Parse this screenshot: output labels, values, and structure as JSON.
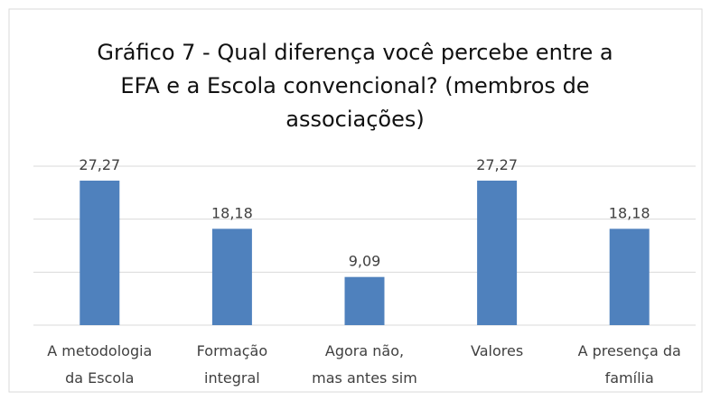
{
  "chart_data": {
    "type": "bar",
    "title": "Gráfico 7 - Qual diferença você percebe entre a EFA e a Escola convencional? (membros de associações)",
    "categories": [
      "A metodologia da Escola",
      "Formação integral",
      "Agora não, mas antes sim",
      "Valores",
      "A presença da família"
    ],
    "values": [
      27.27,
      18.18,
      9.09,
      27.27,
      18.18
    ],
    "value_labels": [
      "27,27",
      "18,18",
      "9,09",
      "27,27",
      "18,18"
    ],
    "color": "#4f81bd",
    "ylim": [
      0,
      30
    ],
    "yticks": [
      0,
      10,
      20,
      30
    ],
    "grid": true
  }
}
